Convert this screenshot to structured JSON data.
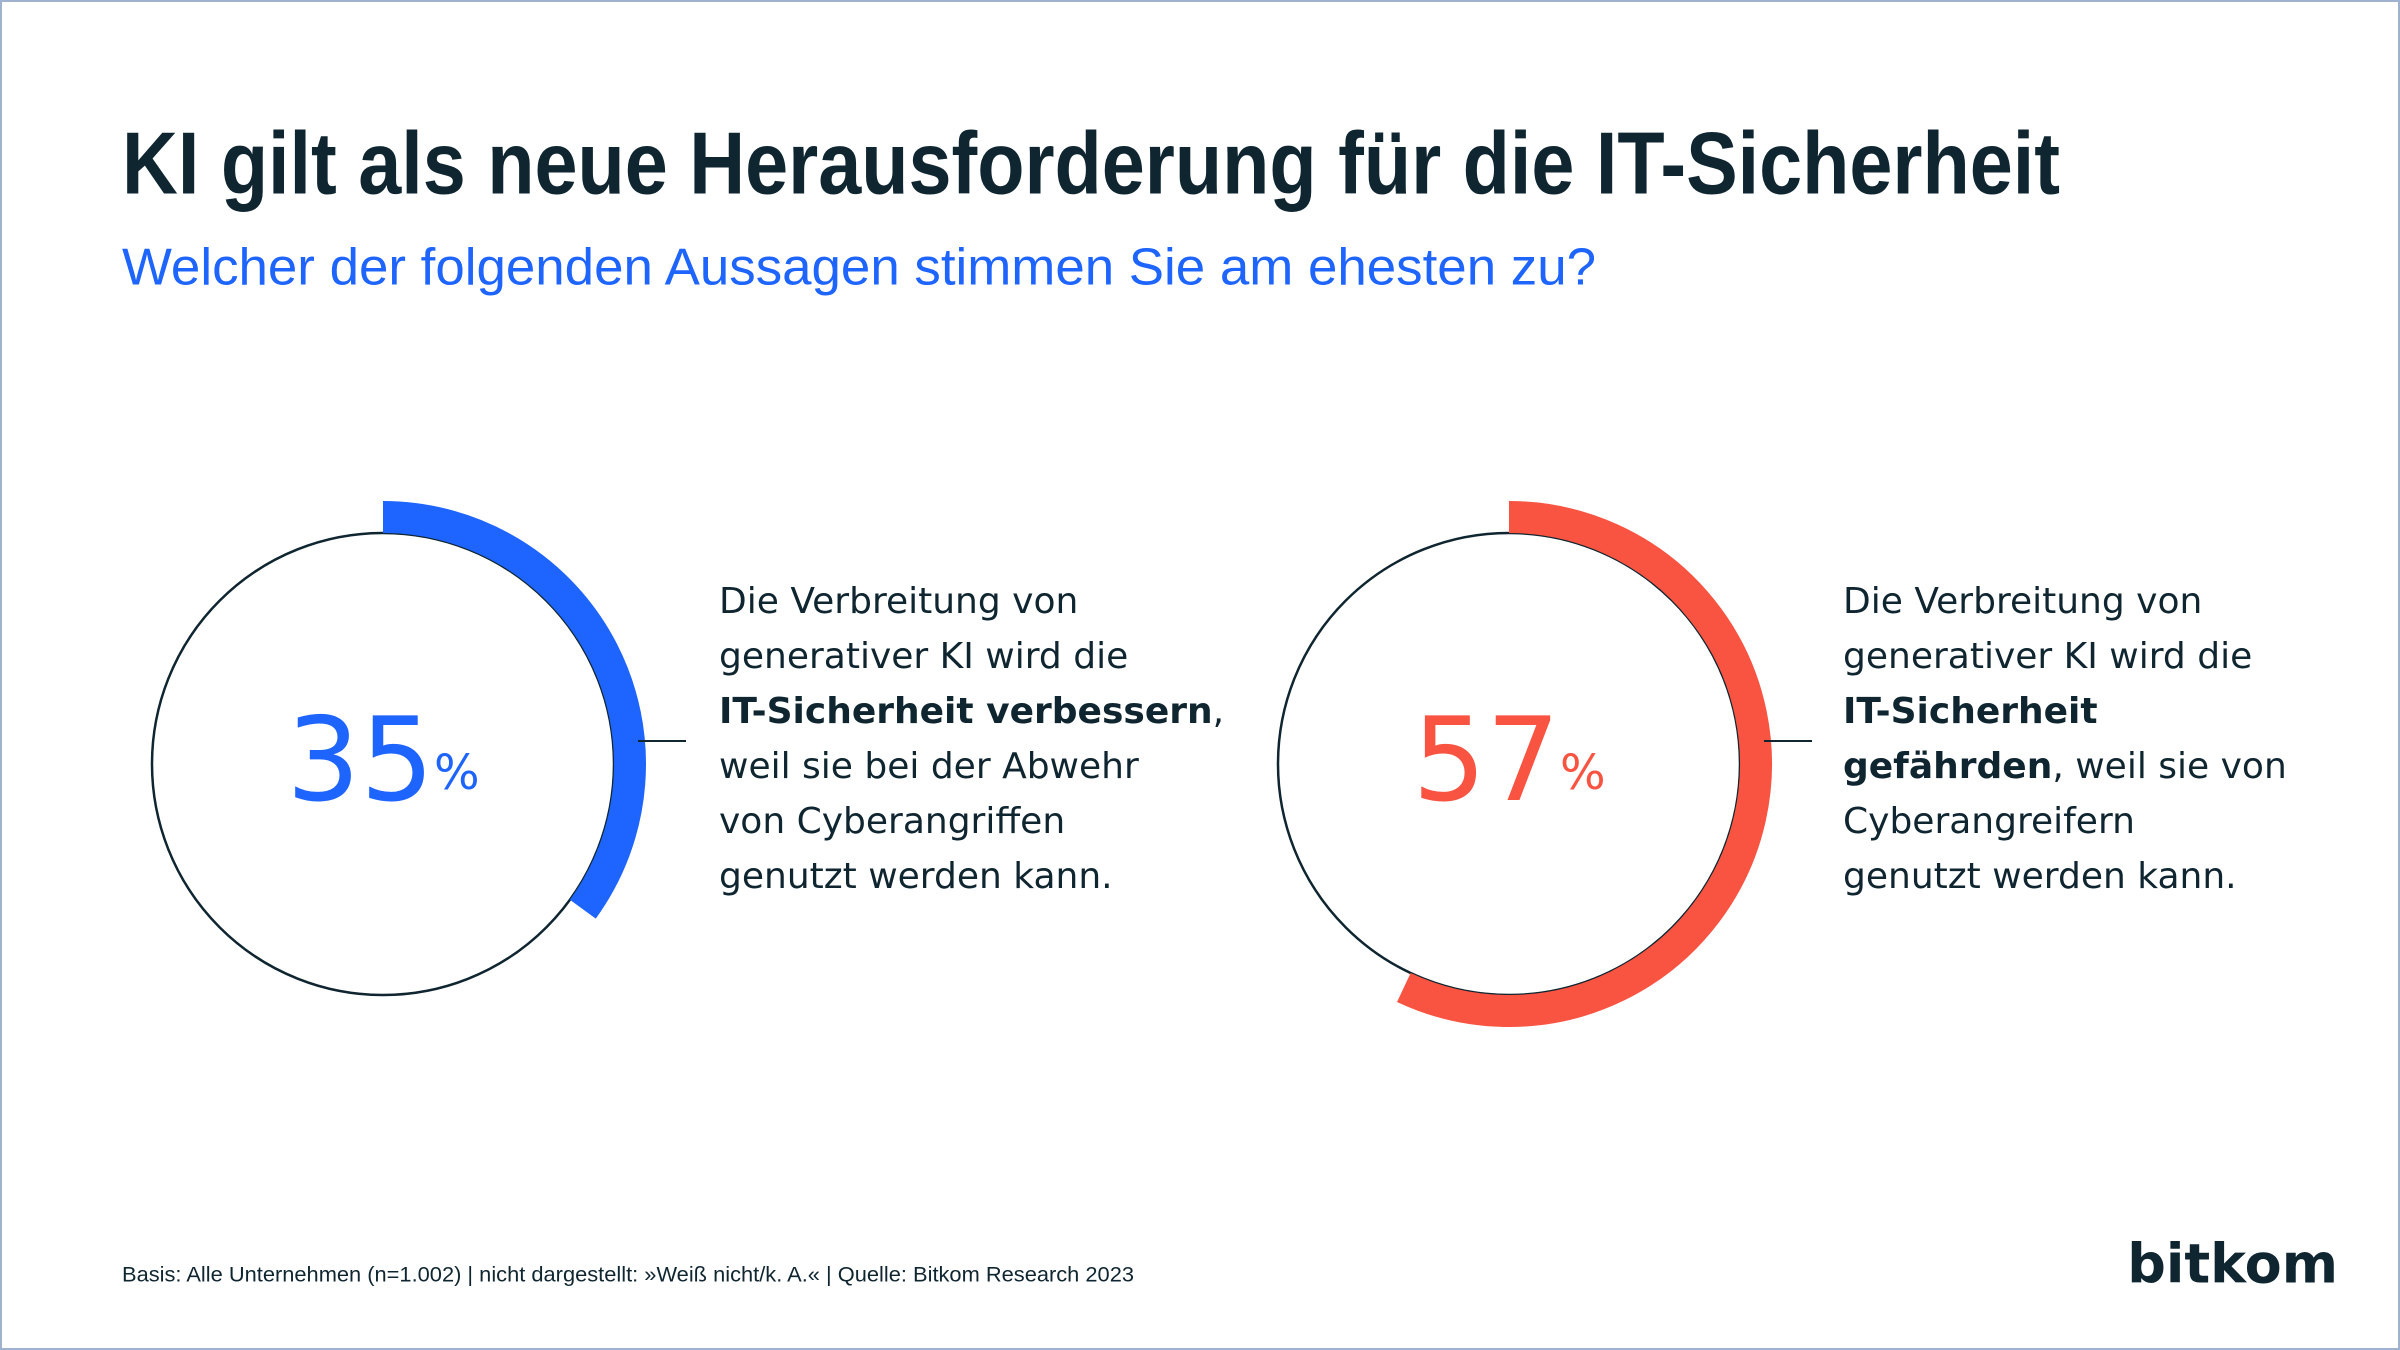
{
  "title": "KI gilt als neue Herausforderung für die IT-Sicherheit",
  "subtitle": "Welcher der folgenden Aussagen stimmen Sie am ehesten zu?",
  "footnote": "Basis: Alle Unternehmen (n=1.002) | nicht dargestellt: »Weiß nicht/k. A.« | Quelle: Bitkom Research 2023",
  "logo": "bitkom",
  "chart_data": [
    {
      "type": "donut",
      "values": [
        35
      ],
      "unit": "%",
      "color": "#1e64ff",
      "description_lines": [
        [
          {
            "text": "Die Verbreitung von",
            "bold": false
          }
        ],
        [
          {
            "text": "generativer KI wird die",
            "bold": false
          }
        ],
        [
          {
            "text": "IT-Sicherheit verbessern",
            "bold": true
          },
          {
            "text": ",",
            "bold": false
          }
        ],
        [
          {
            "text": "weil sie bei der Abwehr",
            "bold": false
          }
        ],
        [
          {
            "text": "von Cyberangriffen",
            "bold": false
          }
        ],
        [
          {
            "text": "genutzt werden kann.",
            "bold": false
          }
        ]
      ]
    },
    {
      "type": "donut",
      "values": [
        57
      ],
      "unit": "%",
      "color": "#f95341",
      "description_lines": [
        [
          {
            "text": "Die Verbreitung von",
            "bold": false
          }
        ],
        [
          {
            "text": "generativer KI wird die",
            "bold": false
          }
        ],
        [
          {
            "text": "IT-Sicherheit",
            "bold": true
          }
        ],
        [
          {
            "text": "gefährden",
            "bold": true
          },
          {
            "text": ", weil sie von",
            "bold": false
          }
        ],
        [
          {
            "text": "Cyberangreifern",
            "bold": false
          }
        ],
        [
          {
            "text": "genutzt werden kann.",
            "bold": false
          }
        ]
      ]
    }
  ]
}
